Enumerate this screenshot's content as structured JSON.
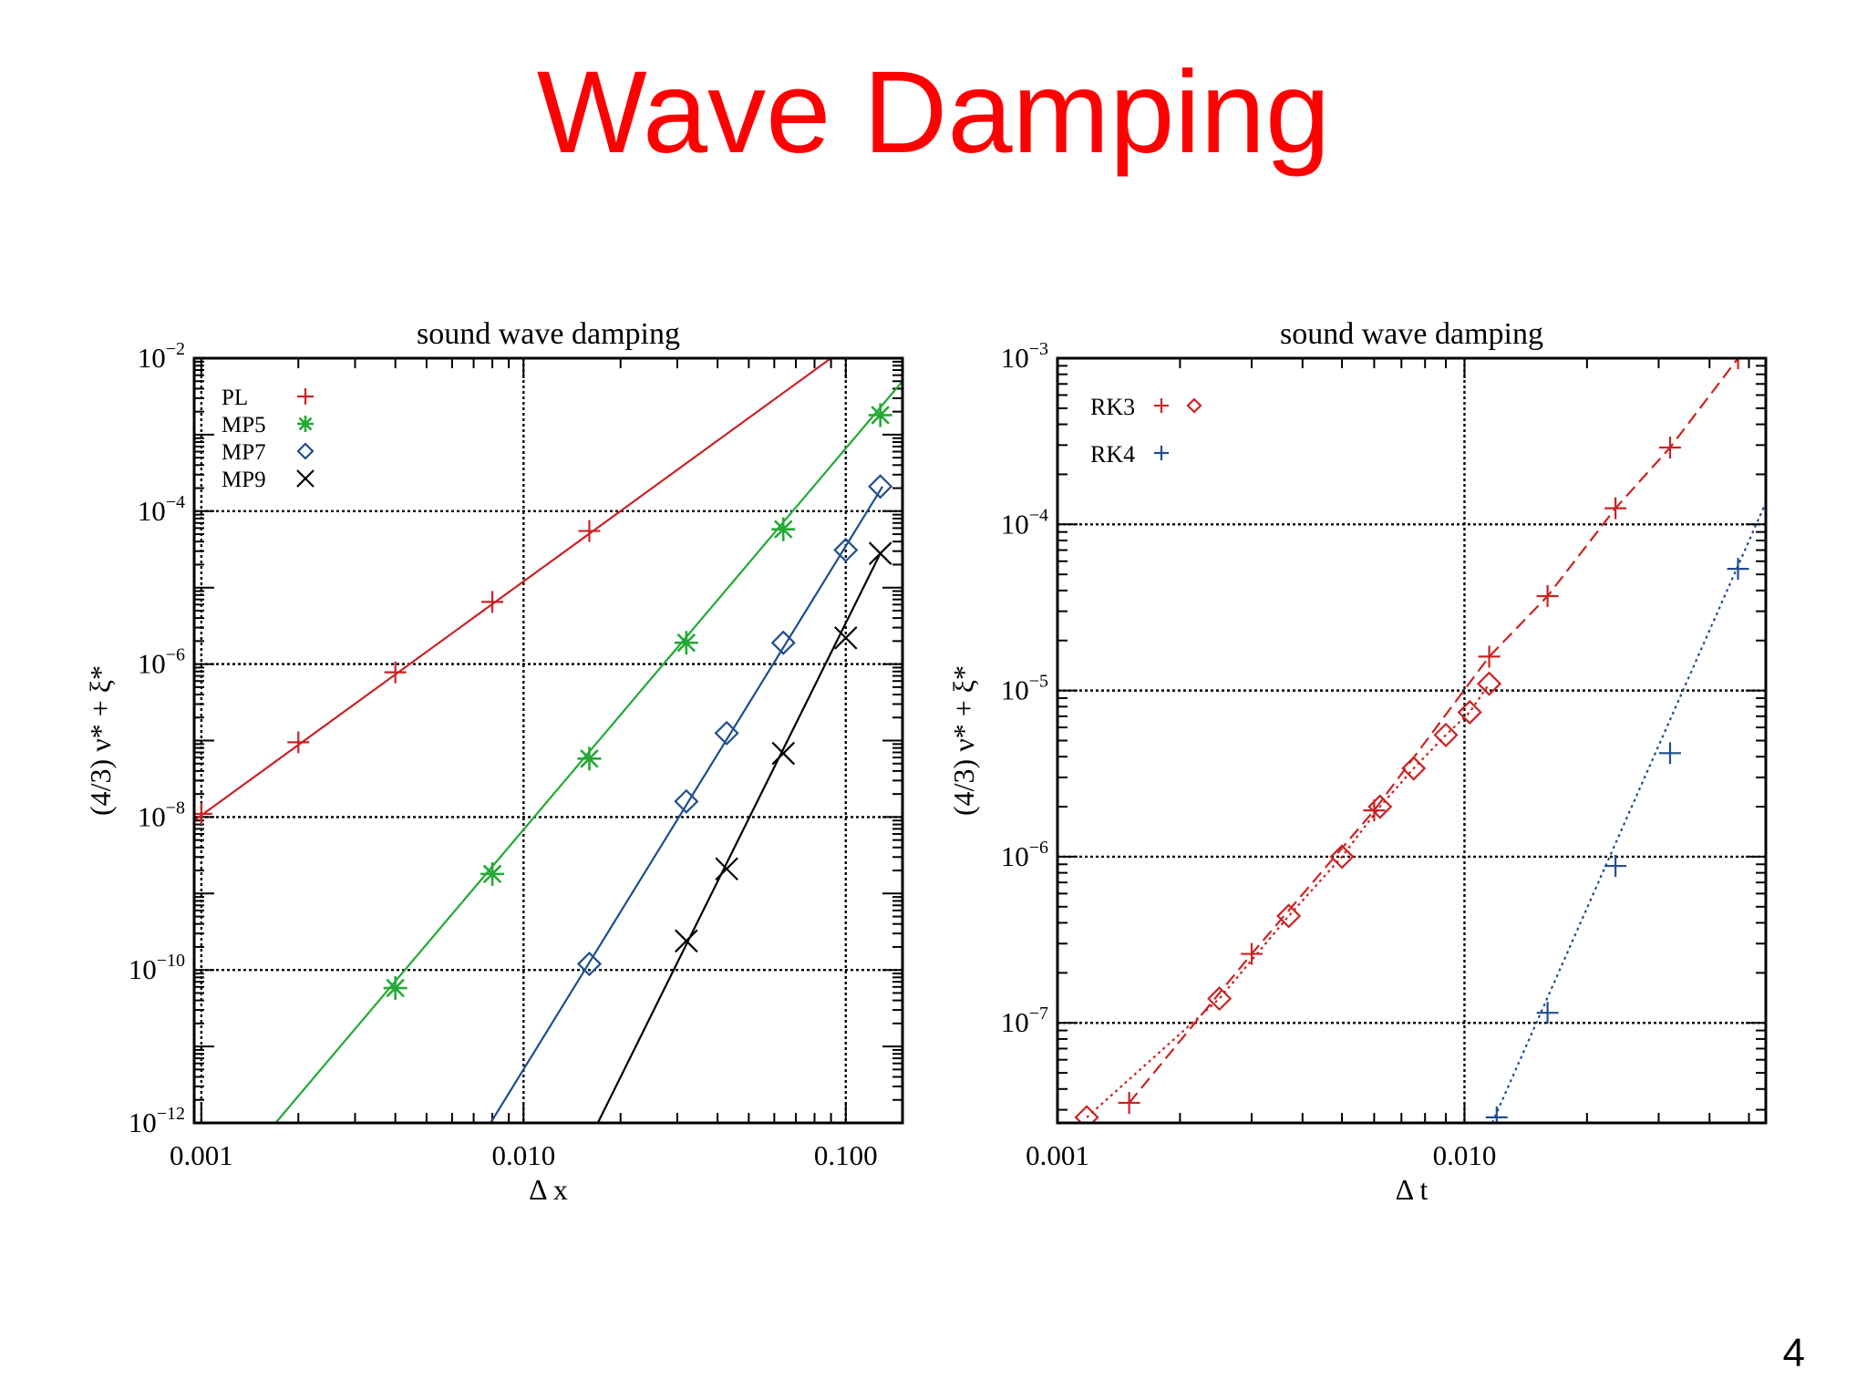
{
  "slide": {
    "title": "Wave Damping",
    "page_number": "4"
  },
  "chart_data": [
    {
      "type": "line",
      "title": "sound wave damping",
      "xlabel": "Δ x",
      "ylabel": "(4/3) ν* + ξ*",
      "xscale": "log",
      "yscale": "log",
      "xlim": [
        0.00095,
        0.15
      ],
      "ylim": [
        1e-12,
        0.01
      ],
      "xticks": [
        {
          "value": 0.001,
          "label": "0.001"
        },
        {
          "value": 0.01,
          "label": "0.010"
        },
        {
          "value": 0.1,
          "label": "0.100"
        }
      ],
      "yticks": [
        {
          "value": 0.01,
          "base": "10",
          "exp": "−2"
        },
        {
          "value": 0.0001,
          "base": "10",
          "exp": "−4"
        },
        {
          "value": 1e-06,
          "base": "10",
          "exp": "−6"
        },
        {
          "value": 1e-08,
          "base": "10",
          "exp": "−8"
        },
        {
          "value": 1e-10,
          "base": "10",
          "exp": "−10"
        },
        {
          "value": 1e-12,
          "base": "10",
          "exp": "−12"
        }
      ],
      "grid": true,
      "legend_position": "top-left",
      "series": [
        {
          "name": "PL",
          "color": "#cc2222",
          "marker": "plus",
          "line": "solid",
          "x": [
            0.001,
            0.002,
            0.004,
            0.008,
            0.016
          ],
          "y": [
            1.1e-08,
            9.5e-08,
            7.8e-07,
            6.5e-06,
            5.5e-05
          ],
          "fit": {
            "x": [
              0.00095,
              0.09
            ],
            "y": [
              9e-09,
              0.01
            ]
          }
        },
        {
          "name": "MP5",
          "color": "#22aa33",
          "marker": "asterisk",
          "line": "solid",
          "x": [
            0.004,
            0.008,
            0.016,
            0.032,
            0.064,
            0.128
          ],
          "y": [
            5.8e-11,
            1.8e-09,
            5.8e-08,
            1.9e-06,
            5.8e-05,
            0.0018
          ],
          "fit": {
            "x": [
              0.0017,
              0.15
            ],
            "y": [
              1e-12,
              0.005
            ]
          }
        },
        {
          "name": "MP7",
          "color": "#1f4e8c",
          "marker": "diamond",
          "line": "solid",
          "x": [
            0.016,
            0.032,
            0.0427,
            0.064,
            0.1,
            0.128
          ],
          "y": [
            1.2e-10,
            1.6e-08,
            1.25e-07,
            1.9e-06,
            3.1e-05,
            0.00021
          ],
          "fit": {
            "x": [
              0.0079,
              0.13
            ],
            "y": [
              1e-12,
              0.00021
            ]
          }
        },
        {
          "name": "MP9",
          "color": "#000000",
          "marker": "cross",
          "line": "solid",
          "x": [
            0.032,
            0.0427,
            0.064,
            0.1,
            0.128
          ],
          "y": [
            2.4e-10,
            2.1e-09,
            6.8e-08,
            2.2e-06,
            2.8e-05
          ],
          "fit": {
            "x": [
              0.017,
              0.128
            ],
            "y": [
              1e-12,
              2.8e-05
            ]
          }
        }
      ]
    },
    {
      "type": "line",
      "title": "sound wave damping",
      "xlabel": "Δ t",
      "ylabel": "(4/3) ν* + ξ*",
      "xscale": "log",
      "yscale": "log",
      "xlim": [
        0.001,
        0.055
      ],
      "ylim": [
        2.5e-08,
        0.001
      ],
      "xticks": [
        {
          "value": 0.001,
          "label": "0.001"
        },
        {
          "value": 0.01,
          "label": "0.010"
        }
      ],
      "yticks": [
        {
          "value": 0.001,
          "base": "10",
          "exp": "−3"
        },
        {
          "value": 0.0001,
          "base": "10",
          "exp": "−4"
        },
        {
          "value": 1e-05,
          "base": "10",
          "exp": "−5"
        },
        {
          "value": 1e-06,
          "base": "10",
          "exp": "−6"
        },
        {
          "value": 1e-07,
          "base": "10",
          "exp": "−7"
        }
      ],
      "grid": true,
      "legend_position": "top-left",
      "legend": [
        {
          "name": "RK3",
          "markers": [
            "plus",
            "diamond"
          ],
          "color": "#cc2222"
        },
        {
          "name": "RK4",
          "markers": [
            "plus"
          ],
          "color": "#1f4e8c"
        }
      ],
      "series": [
        {
          "name": "RK3 +",
          "color": "#cc2222",
          "marker": "plus",
          "line": "dashed",
          "x": [
            0.0015,
            0.003,
            0.006,
            0.0115,
            0.016,
            0.0235,
            0.032,
            0.047
          ],
          "y": [
            3.3e-08,
            2.6e-07,
            1.9e-06,
            1.6e-05,
            3.7e-05,
            0.000125,
            0.00029,
            0.001
          ]
        },
        {
          "name": "RK3 ◇",
          "color": "#cc2222",
          "marker": "diamond",
          "line": "dotted",
          "x": [
            0.00118,
            0.0025,
            0.0037,
            0.005,
            0.0062,
            0.0075,
            0.009,
            0.0103,
            0.0115
          ],
          "y": [
            2.7e-08,
            1.4e-07,
            4.4e-07,
            1e-06,
            2e-06,
            3.4e-06,
            5.4e-06,
            7.4e-06,
            1.1e-05
          ]
        },
        {
          "name": "RK4",
          "color": "#1f4e8c",
          "marker": "plus",
          "line": "dotted",
          "x": [
            0.012,
            0.016,
            0.0235,
            0.032,
            0.047
          ],
          "y": [
            2.7e-08,
            1.15e-07,
            8.8e-07,
            4.2e-06,
            5.4e-05
          ],
          "fit": {
            "x": [
              0.0117,
              0.055
            ],
            "y": [
              2.5e-08,
              0.000135
            ]
          }
        }
      ]
    }
  ]
}
